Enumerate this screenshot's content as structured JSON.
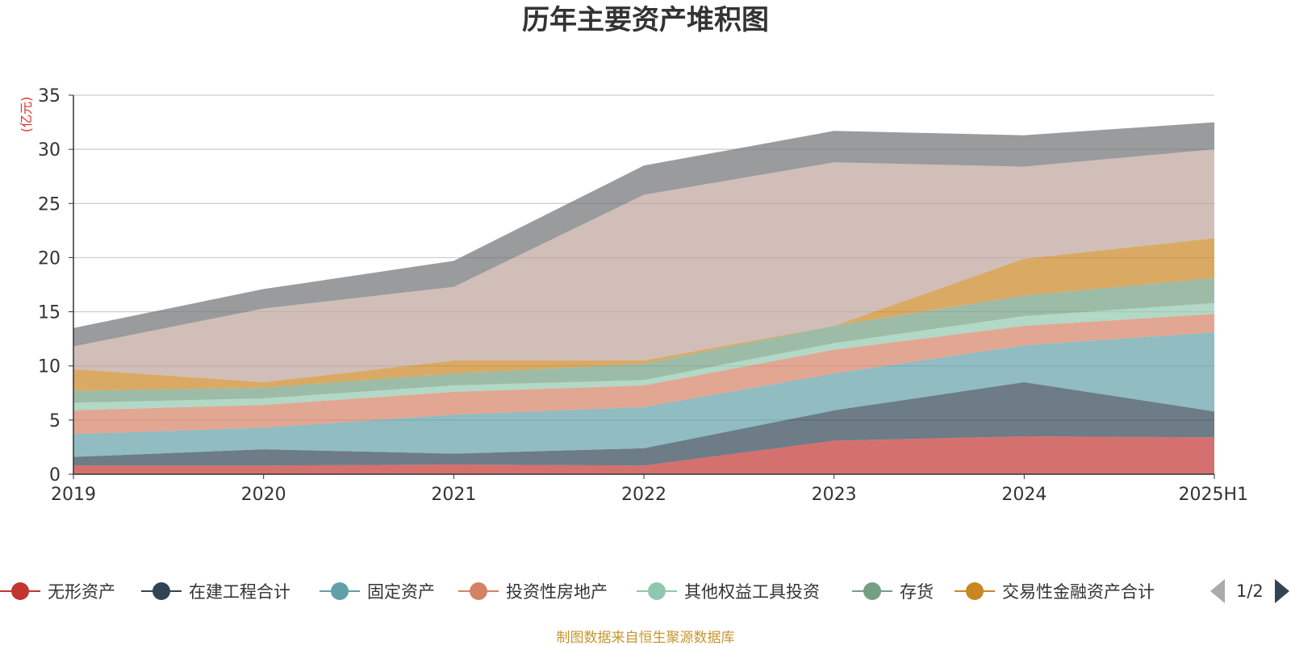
{
  "title": "历年主要资产堆积图",
  "unit_label": "(亿元)",
  "source_note": "制图数据来自恒生聚源数据库",
  "legend_pager": "1/2",
  "chart_data": {
    "type": "area",
    "stacked": true,
    "title": "历年主要资产堆积图",
    "ylabel": "(亿元)",
    "categories": [
      "2019",
      "2020",
      "2021",
      "2022",
      "2023",
      "2024",
      "2025H1"
    ],
    "ylim": [
      0,
      35
    ],
    "yticks": [
      0,
      5,
      10,
      15,
      20,
      25,
      30,
      35
    ],
    "grid": true,
    "legend_position": "bottom",
    "series": [
      {
        "name": "无形资产",
        "color": "#c23531",
        "values": [
          0.8,
          0.8,
          0.9,
          0.8,
          3.1,
          3.5,
          3.4
        ]
      },
      {
        "name": "在建工程合计",
        "color": "#2f4554",
        "values": [
          0.8,
          1.5,
          1.0,
          1.6,
          2.8,
          5.0,
          2.4
        ]
      },
      {
        "name": "固定资产",
        "color": "#61a0a8",
        "values": [
          2.1,
          2.0,
          3.6,
          3.8,
          3.4,
          3.4,
          7.3
        ]
      },
      {
        "name": "投资性房地产",
        "color": "#d48265",
        "values": [
          2.2,
          2.1,
          2.1,
          2.0,
          2.2,
          1.8,
          1.7
        ]
      },
      {
        "name": "其他权益工具投资",
        "color": "#91c7ae",
        "values": [
          0.7,
          0.6,
          0.6,
          0.5,
          0.6,
          0.9,
          1.0
        ]
      },
      {
        "name": "存货",
        "color": "#749f83",
        "values": [
          1.1,
          1.0,
          1.1,
          1.5,
          1.6,
          1.9,
          2.3
        ]
      },
      {
        "name": "交易性金融资产合计",
        "color": "#ca8622",
        "values": [
          2.0,
          0.5,
          1.2,
          0.3,
          0.0,
          3.4,
          3.7
        ]
      },
      {
        "name": "",
        "color": "#bda29a",
        "values": [
          2.1,
          6.8,
          6.8,
          15.3,
          15.1,
          8.5,
          8.2
        ]
      },
      {
        "name": "",
        "color": "#6e7074",
        "values": [
          1.7,
          1.8,
          2.4,
          2.7,
          2.9,
          2.9,
          2.5
        ]
      }
    ]
  }
}
